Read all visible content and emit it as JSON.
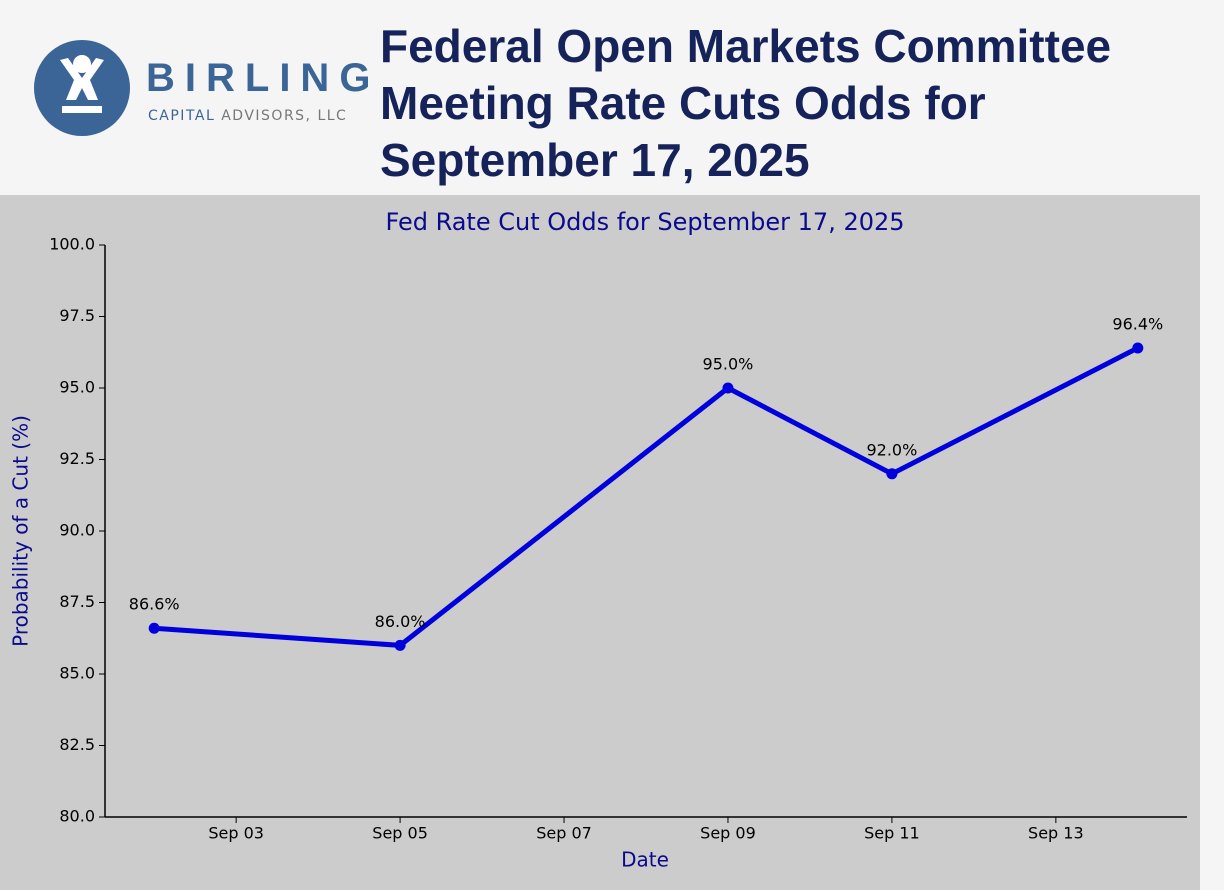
{
  "header": {
    "brand": "BIRLING",
    "brand_sub_1": "CAPITAL",
    "brand_sub_2": "ADVISORS, LLC",
    "title": "Federal Open Markets Committee Meeting Rate Cuts Odds for September 17, 2025"
  },
  "chart_data": {
    "type": "line",
    "title": "Fed Rate Cut Odds for September 17, 2025",
    "x_label": "Date",
    "y_label": "Probability of a Cut (%)",
    "x": [
      "Sep 02",
      "Sep 05",
      "Sep 09",
      "Sep 11",
      "Sep 14"
    ],
    "xticks": [
      "Sep 03",
      "Sep 05",
      "Sep 07",
      "Sep 09",
      "Sep 11",
      "Sep 13"
    ],
    "series": [
      {
        "name": "Probability of a Cut",
        "color": "#0000dd",
        "values": [
          86.6,
          86.0,
          95.0,
          92.0,
          96.4
        ],
        "value_labels": [
          "86.6%",
          "86.0%",
          "95.0%",
          "92.0%",
          "96.4%"
        ]
      }
    ],
    "ylim": [
      80,
      100
    ],
    "yticks": [
      {
        "value": 80,
        "label": "80.0"
      },
      82.5,
      {
        "value": 85,
        "label": "85.0"
      },
      87.5,
      {
        "value": 90,
        "label": "90.0"
      },
      92.5,
      {
        "value": 95,
        "label": "95.0"
      },
      97.5,
      {
        "value": 100,
        "label": "100.0"
      }
    ],
    "grid": false
  }
}
